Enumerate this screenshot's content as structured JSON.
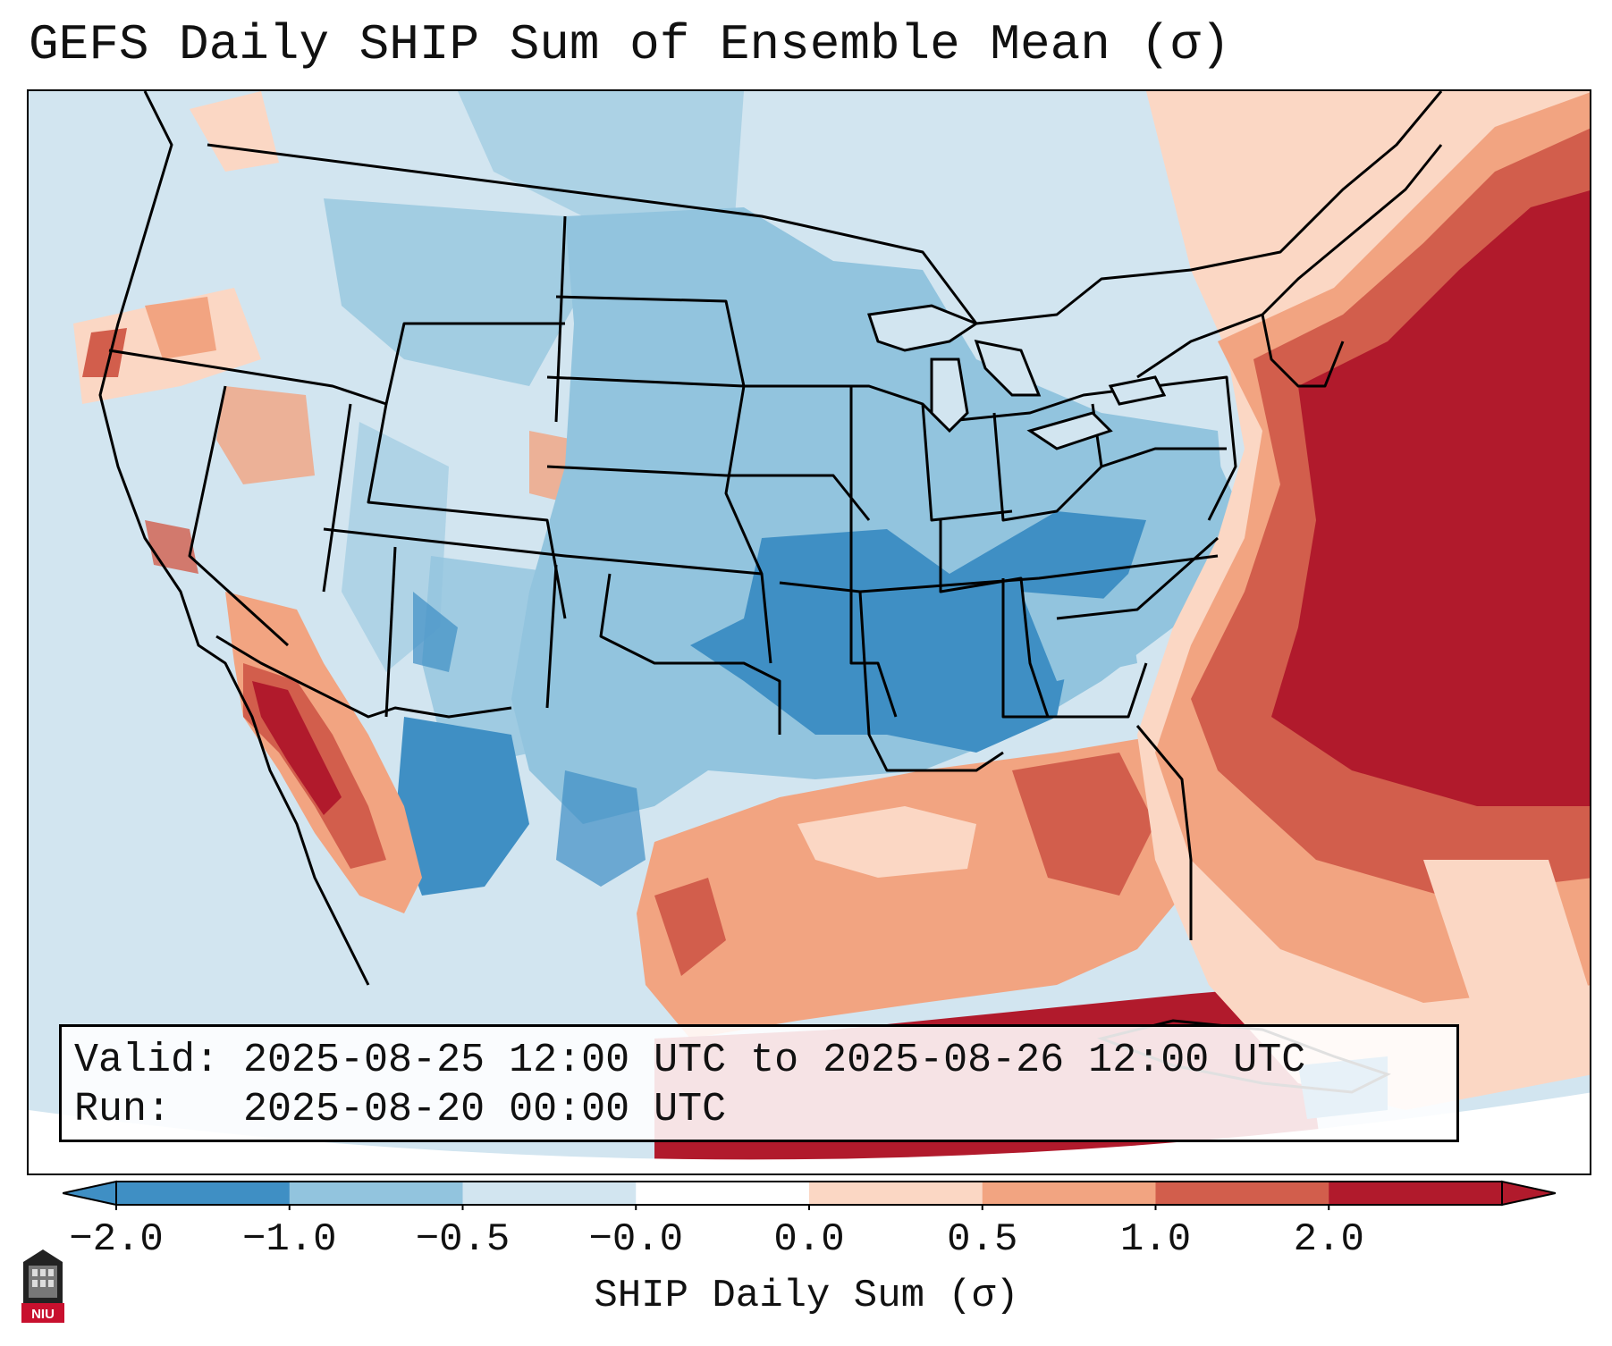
{
  "title": "GEFS Daily SHIP Sum of Ensemble Mean (σ)",
  "info": {
    "valid": "Valid: 2025-08-25 12:00 UTC to 2025-08-26 12:00 UTC",
    "run": "Run:   2025-08-20 00:00 UTC"
  },
  "colorbar": {
    "label": "SHIP Daily Sum (σ)",
    "ticks": [
      "−2.0",
      "−1.0",
      "−0.5",
      "−0.0",
      "0.0",
      "0.5",
      "1.0",
      "2.0"
    ],
    "colors": [
      "#3f8fc4",
      "#92c4de",
      "#d2e5f0",
      "#ffffff",
      "#fbd7c4",
      "#f2a481",
      "#d25e4c",
      "#b11a2c"
    ],
    "extend": "both"
  },
  "map_regions": {
    "pacific_ocean": "light blue",
    "western_us": "light blue",
    "southwest_coast_baja": "dark red",
    "central_plains": "medium blue",
    "lower_mississippi_valley": "blue",
    "gulf_of_mexico": "red",
    "atlantic_coast": "dark red",
    "new_england": "dark red"
  },
  "logo_text": "NIU"
}
